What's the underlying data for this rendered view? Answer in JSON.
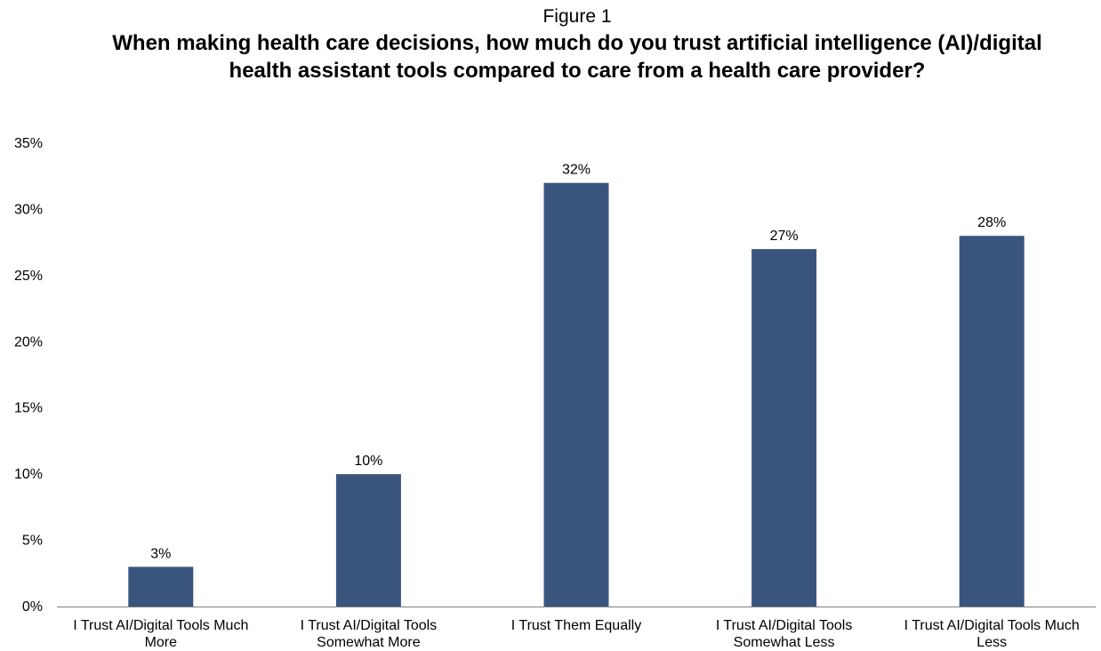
{
  "chart_data": {
    "type": "bar",
    "figure_label": "Figure 1",
    "title": "When making health care decisions, how much do you trust artificial intelligence (AI)/digital health assistant tools compared to care from a health care provider?",
    "categories": [
      "I Trust AI/Digital Tools Much More",
      "I Trust AI/Digital Tools Somewhat More",
      "I Trust Them Equally",
      "I Trust AI/Digital Tools Somewhat Less",
      "I Trust AI/Digital Tools Much Less"
    ],
    "category_label_lines": [
      [
        "I Trust AI/Digital Tools Much",
        "More"
      ],
      [
        "I Trust AI/Digital Tools",
        "Somewhat More"
      ],
      [
        "I Trust Them Equally"
      ],
      [
        "I Trust AI/Digital Tools",
        "Somewhat Less"
      ],
      [
        "I Trust AI/Digital Tools Much",
        "Less"
      ]
    ],
    "values": [
      3,
      10,
      32,
      27,
      28
    ],
    "data_labels": [
      "3%",
      "10%",
      "32%",
      "27%",
      "28%"
    ],
    "ylim": [
      0,
      35
    ],
    "yticks": [
      0,
      5,
      10,
      15,
      20,
      25,
      30,
      35
    ],
    "ytick_labels": [
      "0%",
      "5%",
      "10%",
      "15%",
      "20%",
      "25%",
      "30%",
      "35%"
    ],
    "xlabel": "",
    "ylabel": "",
    "grid": false,
    "legend": "none",
    "colors": {
      "bar": "#3A557D",
      "axis": "#808080"
    }
  }
}
